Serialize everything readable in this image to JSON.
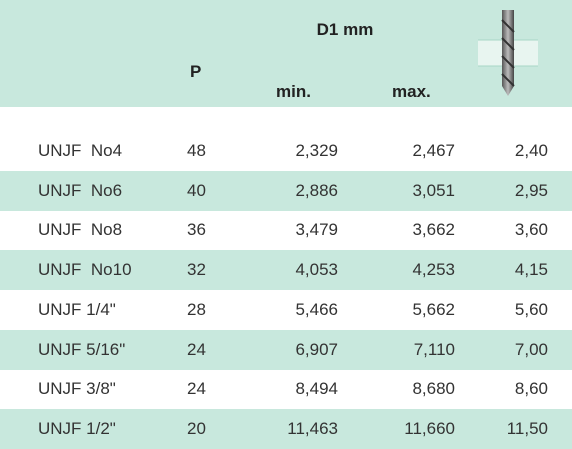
{
  "header": {
    "d1": "D1 mm",
    "p": "P",
    "min": "min.",
    "max": "max."
  },
  "table": {
    "rows": [
      [
        "UNJF  No4",
        "48",
        "2,329",
        "2,467",
        "2,40"
      ],
      [
        "UNJF  No6",
        "40",
        "2,886",
        "3,051",
        "2,95"
      ],
      [
        "UNJF  No8",
        "36",
        "3,479",
        "3,662",
        "3,60"
      ],
      [
        "UNJF  No10",
        "32",
        "4,053",
        "4,253",
        "4,15"
      ],
      [
        "UNJF 1/4\"",
        "28",
        "5,466",
        "5,662",
        "5,60"
      ],
      [
        "UNJF 5/16\"",
        "24",
        "6,907",
        "7,110",
        "7,00"
      ],
      [
        "UNJF 3/8\"",
        "24",
        "8,494",
        "8,680",
        "8,60"
      ],
      [
        "UNJF 1/2\"",
        "20",
        "11,463",
        "11,660",
        "11,50"
      ]
    ]
  }
}
